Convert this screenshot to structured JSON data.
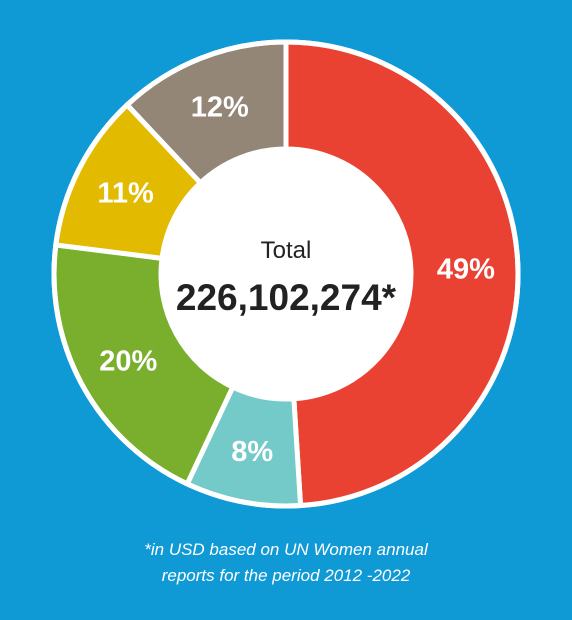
{
  "chart_data": {
    "type": "pie",
    "variant": "donut",
    "center_label": "Total",
    "center_value": "226,102,274*",
    "slices": [
      {
        "label": "49%",
        "value": 49,
        "color": "#e94232"
      },
      {
        "label": "8%",
        "value": 8,
        "color": "#74c9c9"
      },
      {
        "label": "20%",
        "value": 20,
        "color": "#7aaf2e"
      },
      {
        "label": "11%",
        "value": 11,
        "color": "#e2ba00"
      },
      {
        "label": "12%",
        "value": 12,
        "color": "#948677"
      }
    ],
    "background_color": "#0f9ad6"
  },
  "footnote": {
    "line1": "*in USD based on UN Women annual",
    "line2": "reports for the period 2012 -2022"
  }
}
